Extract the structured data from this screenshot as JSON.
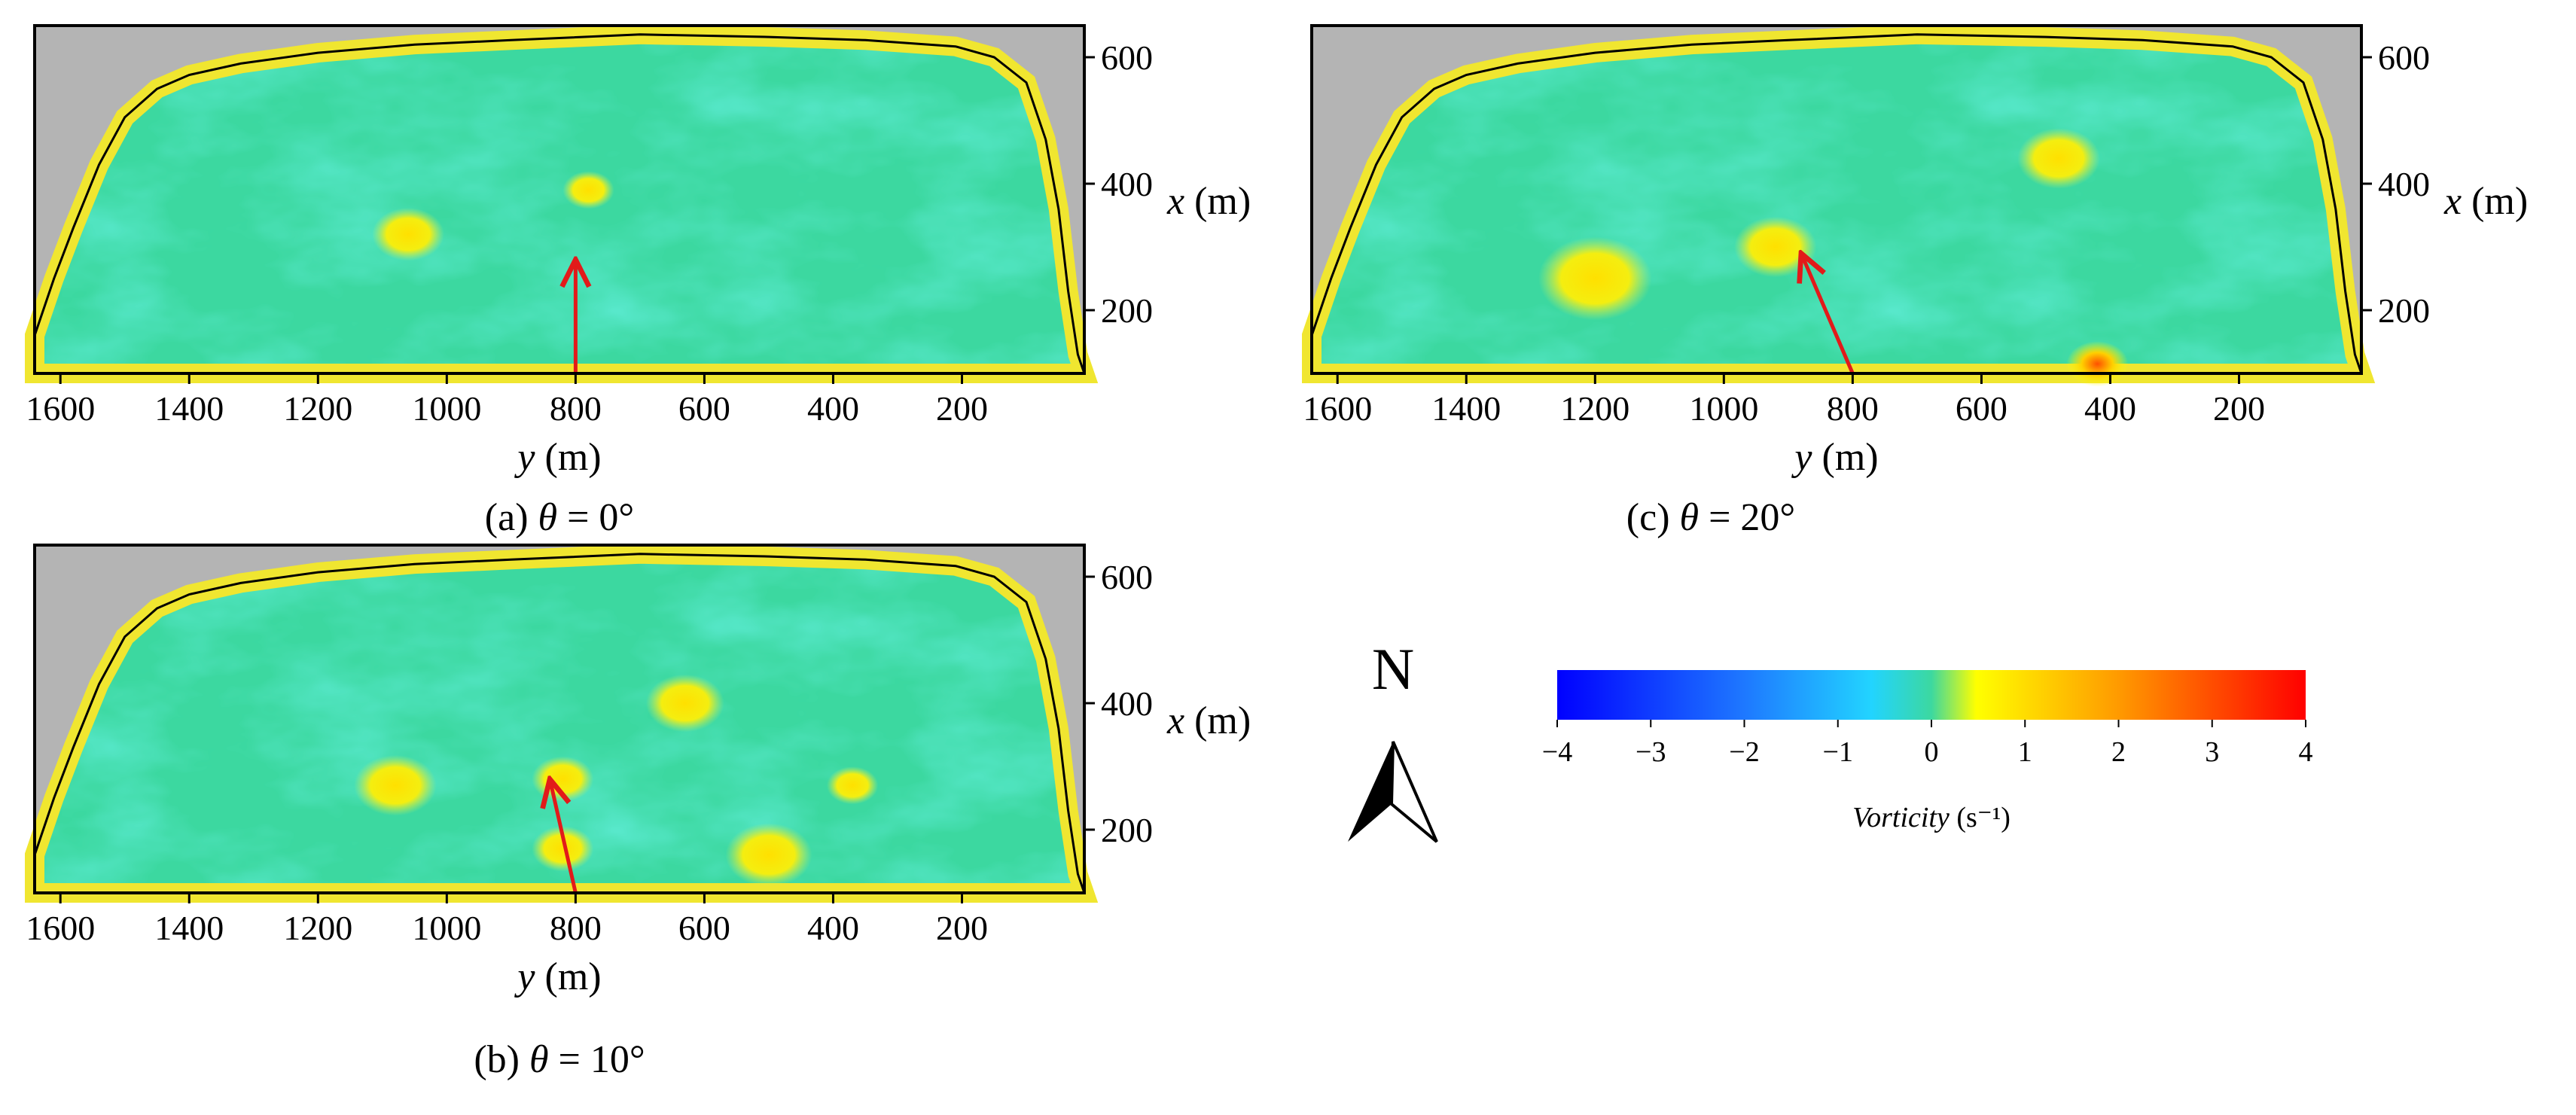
{
  "colors": {
    "land": "#b4b4b4",
    "water_base": "#3cd8a0",
    "arrow": "#e21a1a",
    "colormap": [
      "#0000ff",
      "#1e78ff",
      "#22d4ff",
      "#3cd8a0",
      "#ffff00",
      "#ff9a00",
      "#ff0000"
    ]
  },
  "colorbar": {
    "ticks": [
      "−4",
      "−3",
      "−2",
      "−1",
      "0",
      "1",
      "2",
      "3",
      "4"
    ],
    "label_var": "Vorticity",
    "label_unit": "(s⁻¹)"
  },
  "north": {
    "label": "N"
  },
  "chart_data": [
    {
      "type": "heatmap",
      "panel": "a",
      "caption_id": "(a)",
      "caption_var": "θ",
      "caption_val": "= 0°",
      "xlabel_var": "y",
      "xlabel_unit": "(m)",
      "ylabel_var": "x",
      "ylabel_unit": "(m)",
      "x_ticks": [
        1600,
        1400,
        1200,
        1000,
        800,
        600,
        400,
        200
      ],
      "y_ticks": [
        600,
        400,
        200
      ],
      "xlim": [
        1640,
        10
      ],
      "ylim": [
        100,
        650
      ],
      "arrow_from": [
        800,
        100
      ],
      "arrow_to": [
        800,
        280
      ],
      "vortices": [
        {
          "y": 1060,
          "x": 320,
          "r": 35,
          "v": 0.6
        },
        {
          "y": 780,
          "x": 390,
          "r": 25,
          "v": 0.5
        }
      ]
    },
    {
      "type": "heatmap",
      "panel": "b",
      "caption_id": "(b)",
      "caption_var": "θ",
      "caption_val": "= 10°",
      "xlabel_var": "y",
      "xlabel_unit": "(m)",
      "ylabel_var": "x",
      "ylabel_unit": "(m)",
      "x_ticks": [
        1600,
        1400,
        1200,
        1000,
        800,
        600,
        400,
        200
      ],
      "y_ticks": [
        600,
        400,
        200
      ],
      "xlim": [
        1640,
        10
      ],
      "ylim": [
        100,
        650
      ],
      "arrow_from": [
        800,
        100
      ],
      "arrow_to": [
        840,
        280
      ],
      "vortices": [
        {
          "y": 1080,
          "x": 270,
          "r": 40,
          "v": 0.7
        },
        {
          "y": 820,
          "x": 280,
          "r": 30,
          "v": 0.6
        },
        {
          "y": 820,
          "x": 170,
          "r": 30,
          "v": 0.6
        },
        {
          "y": 630,
          "x": 400,
          "r": 38,
          "v": 0.7
        },
        {
          "y": 500,
          "x": 160,
          "r": 42,
          "v": 0.8
        },
        {
          "y": 370,
          "x": 270,
          "r": 25,
          "v": 0.6
        }
      ]
    },
    {
      "type": "heatmap",
      "panel": "c",
      "caption_id": "(c)",
      "caption_var": "θ",
      "caption_val": "= 20°",
      "xlabel_var": "y",
      "xlabel_unit": "(m)",
      "ylabel_var": "x",
      "ylabel_unit": "(m)",
      "x_ticks": [
        1600,
        1400,
        1200,
        1000,
        800,
        600,
        400,
        200
      ],
      "y_ticks": [
        600,
        400,
        200
      ],
      "xlim": [
        1640,
        10
      ],
      "ylim": [
        100,
        650
      ],
      "arrow_from": [
        800,
        100
      ],
      "arrow_to": [
        880,
        290
      ],
      "vortices": [
        {
          "y": 920,
          "x": 300,
          "r": 40,
          "v": 0.6
        },
        {
          "y": 1200,
          "x": 250,
          "r": 55,
          "v": 0.7
        },
        {
          "y": 480,
          "x": 440,
          "r": 40,
          "v": 0.8
        },
        {
          "y": 420,
          "x": 115,
          "r": 30,
          "v": 2.0
        }
      ]
    }
  ]
}
